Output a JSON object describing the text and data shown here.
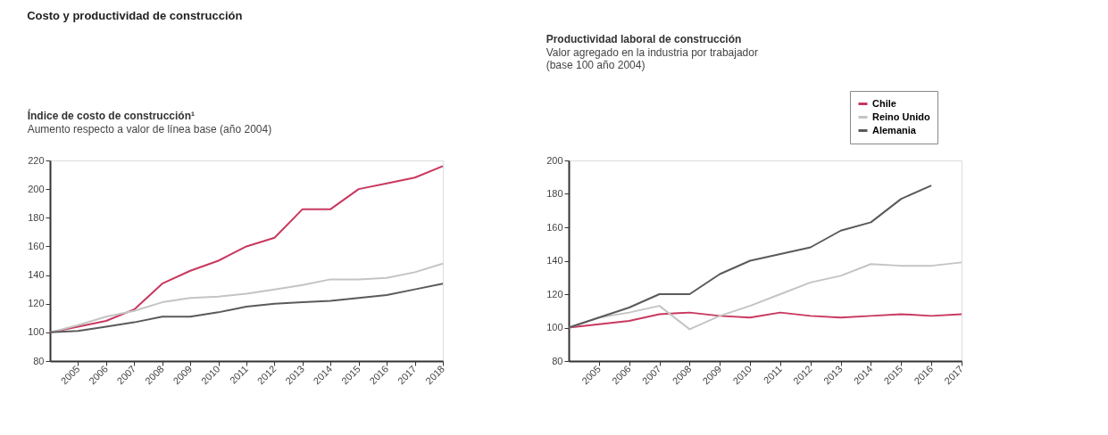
{
  "chart_data": [
    {
      "type": "line",
      "title": "Índice de costo de construcción¹",
      "subtitle": "Aumento respecto a valor de línea base (año 2004)",
      "annotations": [
        "Costo y productividad de construcción"
      ],
      "x": [
        2004,
        2005,
        2006,
        2007,
        2008,
        2009,
        2010,
        2011,
        2012,
        2013,
        2014,
        2015,
        2016,
        2017,
        2018
      ],
      "series": [
        {
          "color": "#c8385e",
          "values": [
            100,
            104,
            108,
            116,
            134,
            143,
            150,
            160,
            166,
            186,
            186,
            200,
            204,
            208,
            216
          ]
        },
        {
          "color": "#c4c4c4",
          "values": [
            100,
            105,
            111,
            115,
            121,
            124,
            125,
            127,
            130,
            133,
            137,
            137,
            138,
            142,
            148
          ]
        },
        {
          "color": "#5a5a5a",
          "values": [
            100,
            101,
            104,
            107,
            111,
            111,
            114,
            118,
            120,
            121,
            122,
            124,
            126,
            130,
            134
          ]
        }
      ],
      "xlim": [
        2004,
        2018
      ],
      "xticks": [
        2005,
        2006,
        2007,
        2008,
        2009,
        2010,
        2011,
        2012,
        2013,
        2014,
        2015,
        2016,
        2017,
        2018
      ],
      "ylim": [
        80,
        220
      ],
      "yticks": [
        80,
        100,
        120,
        140,
        160,
        180,
        200,
        220
      ],
      "grid": false,
      "legend": false
    },
    {
      "type": "line",
      "title": "Productividad laboral de construcción",
      "subtitle": "Valor agregado en la industria por trabajador\n(base 100 año 2004)",
      "x": [
        2004,
        2005,
        2006,
        2007,
        2008,
        2009,
        2010,
        2011,
        2012,
        2013,
        2014,
        2015,
        2016,
        2017
      ],
      "series": [
        {
          "name": "Chile",
          "color": "#c8385e",
          "values": [
            100,
            102,
            104,
            108,
            109,
            107,
            106,
            109,
            107,
            106,
            107,
            108,
            107,
            108
          ]
        },
        {
          "name": "Reino Unido",
          "color": "#c4c4c4",
          "values": [
            100,
            106,
            109,
            113,
            99,
            107,
            113,
            120,
            127,
            131,
            138,
            137,
            137,
            139
          ]
        },
        {
          "name": "Alemania",
          "color": "#5a5a5a",
          "values": [
            100,
            106,
            112,
            120,
            120,
            132,
            140,
            144,
            148,
            158,
            163,
            177,
            185,
            null
          ]
        }
      ],
      "xlim": [
        2004,
        2017
      ],
      "xticks": [
        2005,
        2006,
        2007,
        2008,
        2009,
        2010,
        2011,
        2012,
        2013,
        2014,
        2015,
        2016,
        2017
      ],
      "ylim": [
        80,
        200
      ],
      "yticks": [
        80,
        100,
        120,
        140,
        160,
        180,
        200
      ],
      "grid": false,
      "legend": "top right"
    }
  ]
}
